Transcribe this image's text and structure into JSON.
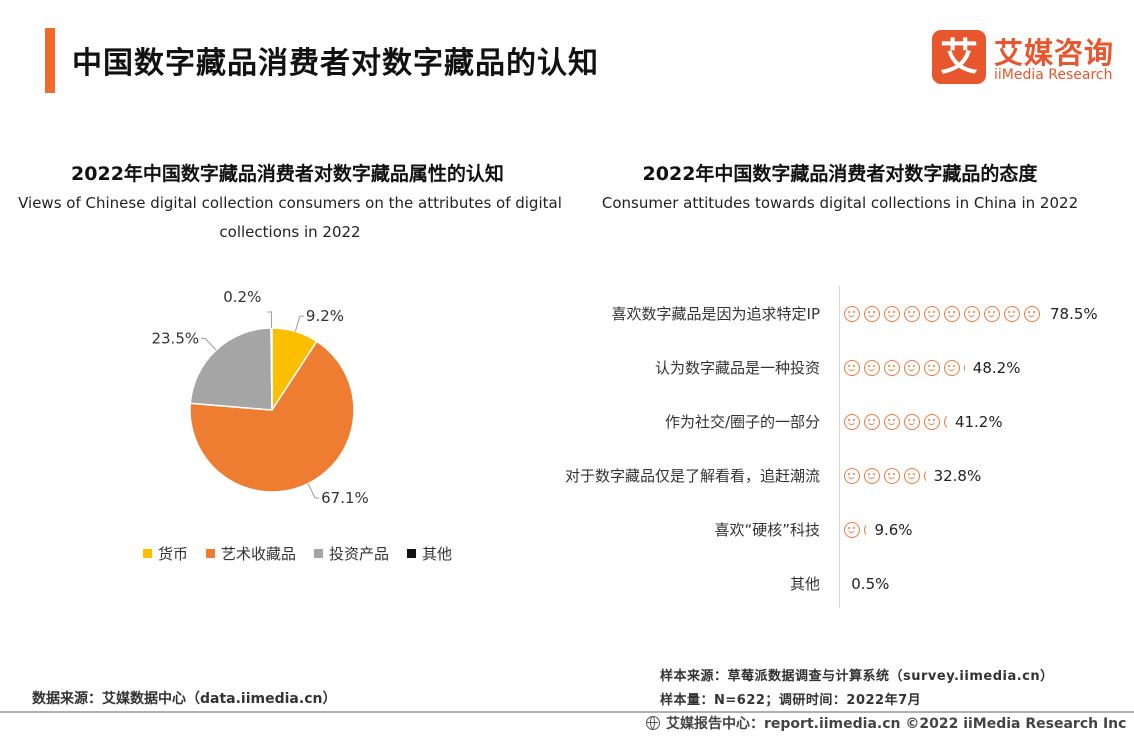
{
  "header": {
    "title": "中国数字藏品消费者对数字藏品的认知",
    "logo_mark": "艾",
    "logo_cn": "艾媒咨询",
    "logo_en": "iiMedia Research"
  },
  "colors": {
    "accent": "#ee6b2c",
    "currency": "#fbbf00",
    "art": "#ee7d31",
    "investment": "#a5a5a5",
    "other": "#111111",
    "smiley": "#ee7a3b"
  },
  "chart_data": [
    {
      "type": "pie",
      "title": "2022年中国数字藏品消费者对数字藏品属性的认知",
      "subtitle": "Views of Chinese digital collection consumers on the attributes of digital collections in 2022",
      "unit": "%",
      "legend_position": "bottom",
      "slices": [
        {
          "label": "货币",
          "value": 9.2,
          "display": "9.2%",
          "color": "#fbbf00"
        },
        {
          "label": "艺术收藏品",
          "value": 67.1,
          "display": "67.1%",
          "color": "#ee7d31"
        },
        {
          "label": "投资产品",
          "value": 23.5,
          "display": "23.5%",
          "color": "#a5a5a5"
        },
        {
          "label": "其他",
          "value": 0.2,
          "display": "0.2%",
          "color": "#111111"
        }
      ]
    },
    {
      "type": "bar",
      "orientation": "horizontal",
      "style": "pictograph",
      "icon": "smiley-icon",
      "title": "2022年中国数字藏品消费者对数字藏品的态度",
      "subtitle": "Consumer attitudes towards digital collections in China in 2022",
      "unit": "%",
      "xlim": [
        0,
        100
      ],
      "categories": [
        "喜欢数字藏品是因为追求特定IP",
        "认为数字藏品是一种投资",
        "作为社交/圈子的一部分",
        "对于数字藏品仅是了解看看，追赶潮流",
        "喜欢“硬核”科技",
        "其他"
      ],
      "values": [
        78.5,
        48.2,
        41.2,
        32.8,
        9.6,
        0.5
      ],
      "value_labels": [
        "78.5%",
        "48.2%",
        "41.2%",
        "32.8%",
        "9.6%",
        "0.5%"
      ]
    }
  ],
  "sources": {
    "data_source": "数据来源：艾媒数据中心（data.iimedia.cn）",
    "sample_source": "样本来源：草莓派数据调查与计算系统（survey.iimedia.cn）",
    "sample_size": "样本量：N=622；调研时间：2022年7月"
  },
  "footer": {
    "text": "艾媒报告中心：report.iimedia.cn  ©2022  iiMedia Research  Inc"
  }
}
